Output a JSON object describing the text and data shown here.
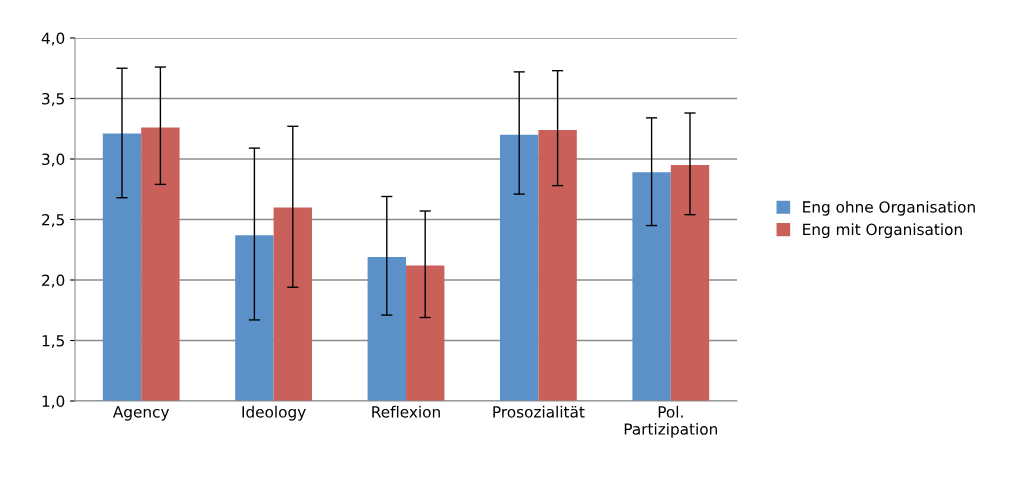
{
  "chart_data": {
    "type": "bar",
    "categories": [
      "Agency",
      "Ideology",
      "Reflexion",
      "Prosozialität",
      "Pol.\nPartizipation"
    ],
    "series": [
      {
        "name": "Eng ohne Organisation",
        "color": "#5b91c8",
        "values": [
          3.21,
          2.37,
          2.19,
          3.2,
          2.89
        ],
        "errors": [
          [
            2.68,
            3.75
          ],
          [
            1.67,
            3.09
          ],
          [
            1.71,
            2.69
          ],
          [
            2.71,
            3.72
          ],
          [
            2.45,
            3.34
          ]
        ]
      },
      {
        "name": "Eng mit Organisation",
        "color": "#c9615a",
        "values": [
          3.26,
          2.6,
          2.12,
          3.24,
          2.95
        ],
        "errors": [
          [
            2.79,
            3.76
          ],
          [
            1.94,
            3.27
          ],
          [
            1.69,
            2.57
          ],
          [
            2.78,
            3.73
          ],
          [
            2.54,
            3.38
          ]
        ]
      }
    ],
    "ylim": [
      1.0,
      4.0
    ],
    "yticks": [
      {
        "value": 1.0,
        "label": "1,0"
      },
      {
        "value": 1.5,
        "label": "1,5"
      },
      {
        "value": 2.0,
        "label": "2,0"
      },
      {
        "value": 2.5,
        "label": "2,5"
      },
      {
        "value": 3.0,
        "label": "3,0"
      },
      {
        "value": 3.5,
        "label": "3,5"
      },
      {
        "value": 4.0,
        "label": "4,0"
      }
    ],
    "grid": "y",
    "legend": "right"
  }
}
